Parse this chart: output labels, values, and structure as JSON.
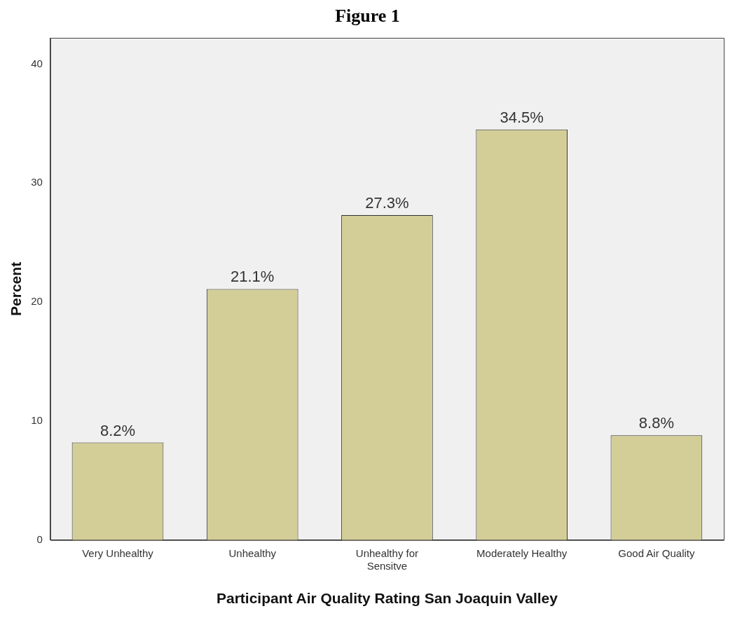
{
  "chart_data": {
    "type": "bar",
    "title": "Figure 1",
    "xlabel": "Participant Air Quality Rating San Joaquin Valley",
    "ylabel": "Percent",
    "categories": [
      "Very Unhealthy",
      "Unhealthy",
      "Unhealthy for Sensitve",
      "Moderately Healthy",
      "Good Air Quality"
    ],
    "values": [
      8.2,
      21.1,
      27.3,
      34.5,
      8.8
    ],
    "value_labels": [
      "8.2%",
      "21.1%",
      "27.3%",
      "34.5%",
      "8.8%"
    ],
    "color": "#d3ce98",
    "ylim": [
      0,
      42.2
    ],
    "yticks": [
      0,
      10,
      20,
      30,
      40
    ],
    "grid": false,
    "legend": false
  }
}
